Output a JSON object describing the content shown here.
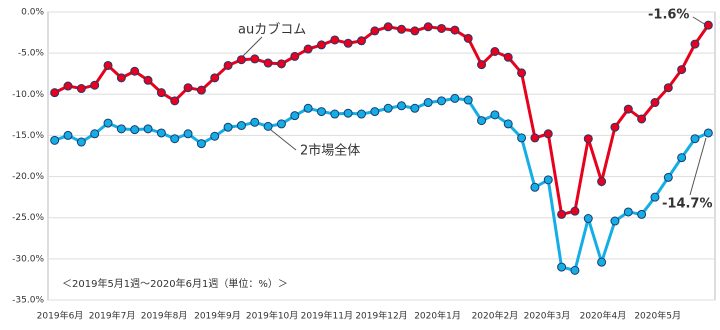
{
  "chart_data": {
    "type": "line",
    "note": "＜2019年5月1週～2020年6月1週（単位：%）＞",
    "annotations": [
      "auカブコム",
      "2市場全体",
      "-1.6%",
      "-14.7%"
    ],
    "xlim": [
      -0.5,
      49.5
    ],
    "xticks": [
      {
        "value": 0.4,
        "label": "2019年6月"
      },
      {
        "value": 4.3,
        "label": "2019年7月"
      },
      {
        "value": 8.2,
        "label": "2019年8月"
      },
      {
        "value": 12.2,
        "label": "2019年9月"
      },
      {
        "value": 16.3,
        "label": "2019年10月"
      },
      {
        "value": 20.4,
        "label": "2019年11月"
      },
      {
        "value": 24.5,
        "label": "2019年12月"
      },
      {
        "value": 28.7,
        "label": "2020年1月"
      },
      {
        "value": 33.0,
        "label": "2020年2月"
      },
      {
        "value": 36.9,
        "label": "2020年3月"
      },
      {
        "value": 41.1,
        "label": "2020年4月"
      },
      {
        "value": 45.2,
        "label": "2020年5月"
      }
    ],
    "ylim": [
      -35,
      0
    ],
    "yticks": [
      {
        "value": 0,
        "label": "0.0%"
      },
      {
        "value": -5,
        "label": "-5.0%"
      },
      {
        "value": -10,
        "label": "-10.0%"
      },
      {
        "value": -15,
        "label": "-15.0%"
      },
      {
        "value": -20,
        "label": "-20.0%"
      },
      {
        "value": -25,
        "label": "-25.0%"
      },
      {
        "value": -30,
        "label": "-30.0%"
      },
      {
        "value": -35,
        "label": "-35.0%"
      }
    ],
    "grid": true,
    "series": [
      {
        "name": "auカブコム",
        "color": "#e8001c",
        "values": [
          -9.8,
          -9.0,
          -9.3,
          -8.9,
          -6.5,
          -8.0,
          -7.2,
          -8.3,
          -9.8,
          -10.8,
          -9.2,
          -9.5,
          -8.0,
          -6.5,
          -5.8,
          -5.7,
          -6.2,
          -6.3,
          -5.4,
          -4.5,
          -4.0,
          -3.4,
          -3.8,
          -3.5,
          -2.3,
          -1.8,
          -2.1,
          -2.3,
          -1.8,
          -2.0,
          -2.2,
          -3.2,
          -6.4,
          -4.8,
          -5.5,
          -7.4,
          -15.3,
          -14.8,
          -24.6,
          -24.2,
          -15.4,
          -20.6,
          -14.0,
          -11.8,
          -13.0,
          -11.0,
          -9.2,
          -7.0,
          -3.9,
          -1.6
        ]
      },
      {
        "name": "2市場全体",
        "color": "#14aee6",
        "values": [
          -15.6,
          -15.0,
          -15.8,
          -14.8,
          -13.5,
          -14.2,
          -14.3,
          -14.2,
          -14.7,
          -15.4,
          -14.8,
          -16.0,
          -15.1,
          -14.0,
          -13.8,
          -13.4,
          -13.9,
          -13.6,
          -12.6,
          -11.7,
          -12.1,
          -12.4,
          -12.3,
          -12.4,
          -12.1,
          -11.7,
          -11.4,
          -11.7,
          -11.0,
          -10.8,
          -10.5,
          -10.7,
          -13.2,
          -12.5,
          -13.6,
          -15.3,
          -21.3,
          -20.4,
          -31.0,
          -31.4,
          -25.1,
          -30.4,
          -25.4,
          -24.3,
          -24.6,
          -22.5,
          -20.1,
          -17.7,
          -15.4,
          -14.7
        ]
      }
    ]
  }
}
